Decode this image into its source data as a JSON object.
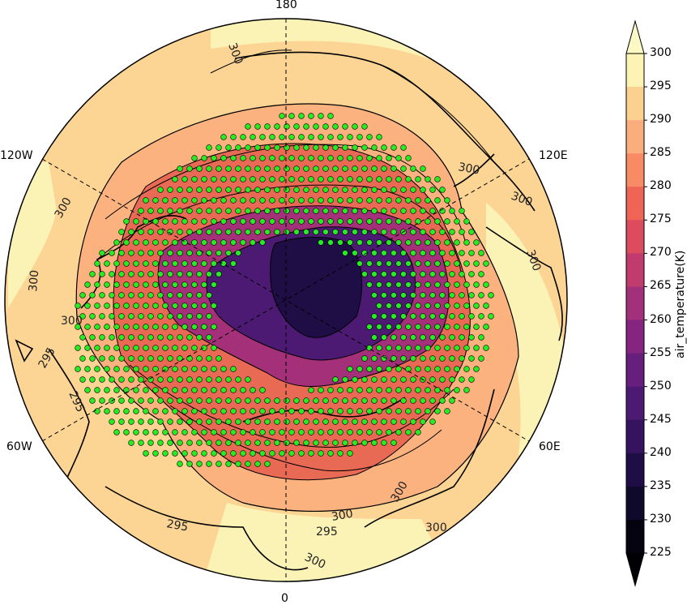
{
  "map": {
    "projection": "north polar stereographic",
    "lon_labels": [
      {
        "text": "180"
      },
      {
        "text": "0"
      },
      {
        "text": "120W"
      },
      {
        "text": "120E"
      },
      {
        "text": "60W"
      },
      {
        "text": "60E"
      }
    ],
    "contour_labels": [
      "300",
      "300",
      "300",
      "300",
      "300",
      "300",
      "295",
      "295",
      "295",
      "295",
      "300",
      "300",
      "300",
      "300",
      "300"
    ],
    "stipple_color": "#22ee22",
    "coastline_color": "#000000"
  },
  "colorbar": {
    "label": "air_temperature(K)",
    "ticks": [
      "300",
      "295",
      "290",
      "285",
      "280",
      "275",
      "270",
      "265",
      "260",
      "255",
      "250",
      "245",
      "240",
      "235",
      "230",
      "225"
    ],
    "colors": [
      "#fcf3b5",
      "#fcd08f",
      "#fcad7e",
      "#f88b63",
      "#ee6455",
      "#dc4c5e",
      "#c23b6e",
      "#a3307b",
      "#85257f",
      "#671f7d",
      "#4d1a73",
      "#36135e",
      "#1f0e45",
      "#0f0a2c",
      "#05030f"
    ]
  }
}
